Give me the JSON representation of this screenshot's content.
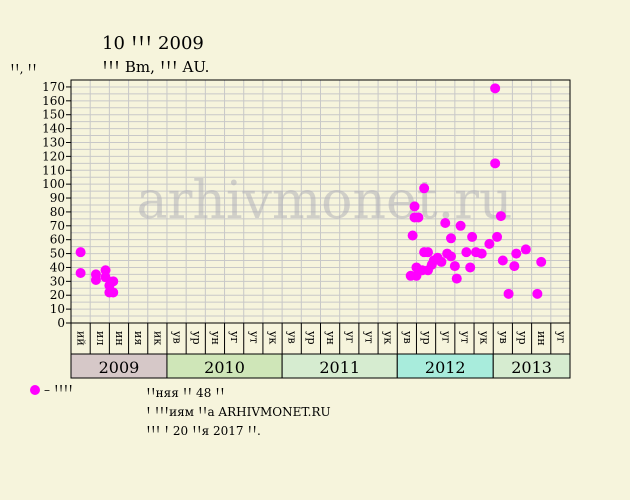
{
  "header": {
    "title": "10 ꞋꞋꞋ 2009",
    "subtitle": "ꞋꞋꞋ Bm, ꞋꞋꞋ AU.",
    "ylabel": "ꞋꞋ, ꞋꞋ"
  },
  "legend": {
    "label": "– ꞋꞋꞋꞋ",
    "color": "#ff00ff"
  },
  "notes": [
    "ꞋꞋняя ꞋꞋ 48 ꞋꞋ",
    "Ꞌ ꞋꞋꞋиям ꞋꞋa ARHIVMONET.RU",
    "ꞋꞋꞋ Ꞌ 20 ꞋꞋя 2017 ꞋꞋ."
  ],
  "watermark": "arhivmonet.ru",
  "colors": {
    "background": "#f6f4dc",
    "plot_background": "#f6f4dc",
    "grid": "#c8c8c8",
    "marker": "#ff00ff"
  },
  "chart_data": {
    "type": "scatter",
    "ylim": [
      0,
      175
    ],
    "y_ticks": [
      0,
      10,
      20,
      30,
      40,
      50,
      60,
      70,
      80,
      90,
      100,
      110,
      120,
      130,
      140,
      150,
      160,
      170
    ],
    "grid": true,
    "months": [
      "ий",
      "ил",
      "ин",
      "ия",
      "ик",
      "ув",
      "ур",
      "ун",
      "уг",
      "ут",
      "ук",
      "ув",
      "ур",
      "ун",
      "уг",
      "ут",
      "ук",
      "ув",
      "ур",
      "уг",
      "ут",
      "ук",
      "ув",
      "ур",
      "ин",
      "уг"
    ],
    "years": [
      {
        "label": "2009",
        "months": 5,
        "color": "#d6c8c8"
      },
      {
        "label": "2010",
        "months": 6,
        "color": "#cfe6b8"
      },
      {
        "label": "2011",
        "months": 6,
        "color": "#d6ecd0"
      },
      {
        "label": "2012",
        "months": 5,
        "color": "#a8ecdc"
      },
      {
        "label": "2013",
        "months": 4,
        "color": "#d6ecd0"
      }
    ],
    "series": [
      {
        "points": [
          [
            0.0,
            51
          ],
          [
            0.0,
            36
          ],
          [
            0.8,
            35
          ],
          [
            0.8,
            31
          ],
          [
            1.3,
            38
          ],
          [
            1.3,
            33
          ],
          [
            1.5,
            27
          ],
          [
            1.5,
            22
          ],
          [
            1.7,
            22
          ],
          [
            1.7,
            30
          ],
          [
            17.2,
            34
          ],
          [
            17.3,
            63
          ],
          [
            17.4,
            84
          ],
          [
            17.4,
            76
          ],
          [
            17.5,
            34
          ],
          [
            17.5,
            40
          ],
          [
            17.6,
            76
          ],
          [
            17.8,
            38
          ],
          [
            17.9,
            97
          ],
          [
            17.9,
            51
          ],
          [
            18.1,
            51
          ],
          [
            18.1,
            38
          ],
          [
            18.3,
            42
          ],
          [
            18.4,
            45
          ],
          [
            18.6,
            47
          ],
          [
            18.8,
            44
          ],
          [
            19.0,
            72
          ],
          [
            19.1,
            50
          ],
          [
            19.3,
            48
          ],
          [
            19.3,
            61
          ],
          [
            19.5,
            41
          ],
          [
            19.6,
            32
          ],
          [
            19.8,
            70
          ],
          [
            20.1,
            51
          ],
          [
            20.3,
            40
          ],
          [
            20.4,
            62
          ],
          [
            20.6,
            51
          ],
          [
            20.9,
            50
          ],
          [
            21.3,
            57
          ],
          [
            21.6,
            115
          ],
          [
            21.6,
            169
          ],
          [
            21.7,
            62
          ],
          [
            21.9,
            77
          ],
          [
            22.0,
            45
          ],
          [
            22.3,
            21
          ],
          [
            22.6,
            41
          ],
          [
            22.7,
            50
          ],
          [
            23.2,
            53
          ],
          [
            23.8,
            21
          ],
          [
            24.0,
            44
          ]
        ]
      }
    ]
  }
}
